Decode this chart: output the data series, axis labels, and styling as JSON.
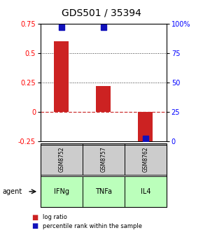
{
  "title": "GDS501 / 35394",
  "samples": [
    "GSM8752",
    "GSM8757",
    "GSM8762"
  ],
  "agents": [
    "IFNg",
    "TNFa",
    "IL4"
  ],
  "log_ratios": [
    0.6,
    0.22,
    -0.3
  ],
  "percentile_ranks": [
    97,
    97,
    2
  ],
  "ylim_left": [
    -0.25,
    0.75
  ],
  "ylim_right": [
    0,
    100
  ],
  "yticks_left": [
    -0.25,
    0.0,
    0.25,
    0.5,
    0.75
  ],
  "ytick_labels_left": [
    "-0.25",
    "0",
    "0.25",
    "0.5",
    "0.75"
  ],
  "yticks_right": [
    0,
    25,
    50,
    75,
    100
  ],
  "ytick_labels_right": [
    "0",
    "25",
    "50",
    "75",
    "100%"
  ],
  "bar_color_red": "#cc2222",
  "bar_color_blue": "#1111bb",
  "agent_color_green": "#bbffbb",
  "sample_color_gray": "#cccccc",
  "hline_0_color": "#cc3333",
  "hline_dotted_color": "#333333",
  "title_fontsize": 10,
  "tick_fontsize": 7,
  "bar_width": 0.35,
  "blue_marker_size": 6
}
